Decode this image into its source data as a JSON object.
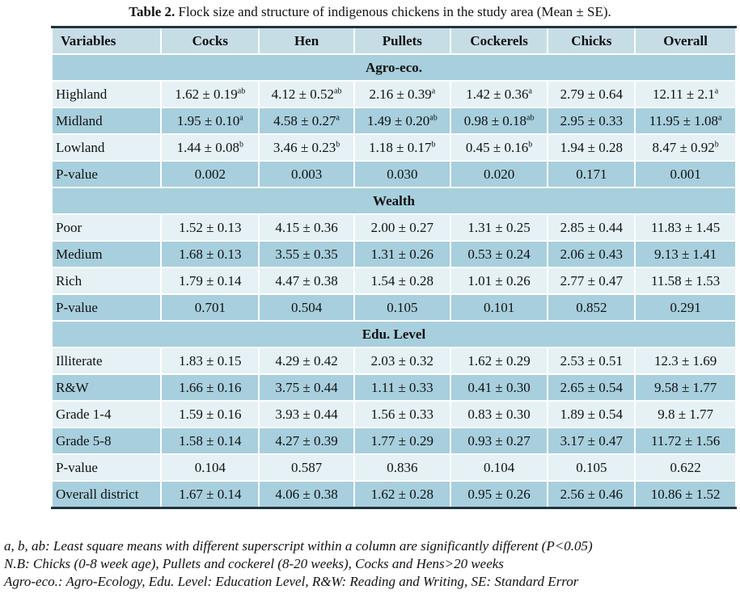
{
  "caption": {
    "label": "Table 2.",
    "text": " Flock size and structure of indigenous chickens in the study area (Mean ± SE)."
  },
  "table": {
    "headers": [
      "Variables",
      "Cocks",
      "Hen",
      "Pullets",
      "Cockerels",
      "Chicks",
      "Overall"
    ],
    "sections": [
      {
        "title": "Agro-eco.",
        "rows": [
          {
            "label": "Highland",
            "cells": [
              {
                "v": "1.62 ± 0.19",
                "s": "ab"
              },
              {
                "v": "4.12 ± 0.52",
                "s": "ab"
              },
              {
                "v": "2.16 ± 0.39",
                "s": "a"
              },
              {
                "v": "1.42 ± 0.36",
                "s": "a"
              },
              {
                "v": "2.79 ± 0.64",
                "s": ""
              },
              {
                "v": "12.11 ± 2.1",
                "s": "a"
              }
            ]
          },
          {
            "label": "Midland",
            "cells": [
              {
                "v": "1.95 ± 0.10",
                "s": "a"
              },
              {
                "v": "4.58 ± 0.27",
                "s": "a"
              },
              {
                "v": "1.49 ± 0.20",
                "s": "ab"
              },
              {
                "v": "0.98 ± 0.18",
                "s": "ab"
              },
              {
                "v": "2.95 ± 0.33",
                "s": ""
              },
              {
                "v": "11.95 ± 1.08",
                "s": "a"
              }
            ]
          },
          {
            "label": "Lowland",
            "cells": [
              {
                "v": "1.44 ± 0.08",
                "s": "b"
              },
              {
                "v": "3.46 ± 0.23",
                "s": "b"
              },
              {
                "v": "1.18 ± 0.17",
                "s": "b"
              },
              {
                "v": "0.45 ± 0.16",
                "s": "b"
              },
              {
                "v": "1.94 ± 0.28",
                "s": ""
              },
              {
                "v": "8.47 ± 0.92",
                "s": "b"
              }
            ]
          },
          {
            "label": "P-value",
            "cells": [
              {
                "v": "0.002",
                "s": ""
              },
              {
                "v": "0.003",
                "s": ""
              },
              {
                "v": "0.030",
                "s": ""
              },
              {
                "v": "0.020",
                "s": ""
              },
              {
                "v": "0.171",
                "s": ""
              },
              {
                "v": "0.001",
                "s": ""
              }
            ]
          }
        ]
      },
      {
        "title": "Wealth",
        "rows": [
          {
            "label": "Poor",
            "cells": [
              {
                "v": "1.52 ± 0.13",
                "s": ""
              },
              {
                "v": "4.15 ± 0.36",
                "s": ""
              },
              {
                "v": "2.00 ± 0.27",
                "s": ""
              },
              {
                "v": "1.31 ± 0.25",
                "s": ""
              },
              {
                "v": "2.85 ± 0.44",
                "s": ""
              },
              {
                "v": "11.83 ± 1.45",
                "s": ""
              }
            ]
          },
          {
            "label": "Medium",
            "cells": [
              {
                "v": "1.68 ± 0.13",
                "s": ""
              },
              {
                "v": "3.55 ± 0.35",
                "s": ""
              },
              {
                "v": "1.31 ± 0.26",
                "s": ""
              },
              {
                "v": "0.53 ± 0.24",
                "s": ""
              },
              {
                "v": "2.06 ± 0.43",
                "s": ""
              },
              {
                "v": "9.13 ± 1.41",
                "s": ""
              }
            ]
          },
          {
            "label": "Rich",
            "cells": [
              {
                "v": "1.79 ± 0.14",
                "s": ""
              },
              {
                "v": "4.47 ± 0.38",
                "s": ""
              },
              {
                "v": "1.54 ± 0.28",
                "s": ""
              },
              {
                "v": "1.01 ± 0.26",
                "s": ""
              },
              {
                "v": "2.77 ± 0.47",
                "s": ""
              },
              {
                "v": "11.58 ± 1.53",
                "s": ""
              }
            ]
          },
          {
            "label": "P-value",
            "cells": [
              {
                "v": "0.701",
                "s": ""
              },
              {
                "v": "0.504",
                "s": ""
              },
              {
                "v": "0.105",
                "s": ""
              },
              {
                "v": "0.101",
                "s": ""
              },
              {
                "v": "0.852",
                "s": ""
              },
              {
                "v": "0.291",
                "s": ""
              }
            ]
          }
        ]
      },
      {
        "title": "Edu. Level",
        "rows": [
          {
            "label": "Illiterate",
            "cells": [
              {
                "v": "1.83 ± 0.15",
                "s": ""
              },
              {
                "v": "4.29 ± 0.42",
                "s": ""
              },
              {
                "v": "2.03 ± 0.32",
                "s": ""
              },
              {
                "v": "1.62 ± 0.29",
                "s": ""
              },
              {
                "v": "2.53 ± 0.51",
                "s": ""
              },
              {
                "v": "12.3 ± 1.69",
                "s": ""
              }
            ]
          },
          {
            "label": "R&W",
            "cells": [
              {
                "v": "1.66 ± 0.16",
                "s": ""
              },
              {
                "v": "3.75 ± 0.44",
                "s": ""
              },
              {
                "v": "1.11 ± 0.33",
                "s": ""
              },
              {
                "v": "0.41 ± 0.30",
                "s": ""
              },
              {
                "v": "2.65 ± 0.54",
                "s": ""
              },
              {
                "v": "9.58 ± 1.77",
                "s": ""
              }
            ]
          },
          {
            "label": "Grade 1-4",
            "cells": [
              {
                "v": "1.59 ± 0.16",
                "s": ""
              },
              {
                "v": "3.93 ± 0.44",
                "s": ""
              },
              {
                "v": "1.56 ± 0.33",
                "s": ""
              },
              {
                "v": "0.83 ± 0.30",
                "s": ""
              },
              {
                "v": "1.89 ± 0.54",
                "s": ""
              },
              {
                "v": "9.8 ± 1.77",
                "s": ""
              }
            ]
          },
          {
            "label": "Grade 5-8",
            "cells": [
              {
                "v": "1.58 ± 0.14",
                "s": ""
              },
              {
                "v": "4.27 ± 0.39",
                "s": ""
              },
              {
                "v": "1.77 ± 0.29",
                "s": ""
              },
              {
                "v": "0.93 ± 0.27",
                "s": ""
              },
              {
                "v": "3.17 ± 0.47",
                "s": ""
              },
              {
                "v": "11.72 ± 1.56",
                "s": ""
              }
            ]
          },
          {
            "label": "P-value",
            "cells": [
              {
                "v": "0.104",
                "s": ""
              },
              {
                "v": "0.587",
                "s": ""
              },
              {
                "v": "0.836",
                "s": ""
              },
              {
                "v": "0.104",
                "s": ""
              },
              {
                "v": "0.105",
                "s": ""
              },
              {
                "v": "0.622",
                "s": ""
              }
            ]
          },
          {
            "label": "Overall district",
            "cells": [
              {
                "v": "1.67 ± 0.14",
                "s": ""
              },
              {
                "v": "4.06 ± 0.38",
                "s": ""
              },
              {
                "v": "1.62 ± 0.28",
                "s": ""
              },
              {
                "v": "0.95 ± 0.26",
                "s": ""
              },
              {
                "v": "2.56 ± 0.46",
                "s": ""
              },
              {
                "v": "10.86 ± 1.52",
                "s": ""
              }
            ]
          }
        ]
      }
    ]
  },
  "footnotes": [
    "a, b, ab: Least square means with different superscript within a column are significantly different (P<0.05)",
    "N.B: Chicks (0-8 week age), Pullets and cockerel (8-20 weeks), Cocks and Hens>20 weeks",
    "Agro-eco.: Agro-Ecology, Edu. Level: Education Level, R&W: Reading and Writing, SE: Standard Error"
  ]
}
